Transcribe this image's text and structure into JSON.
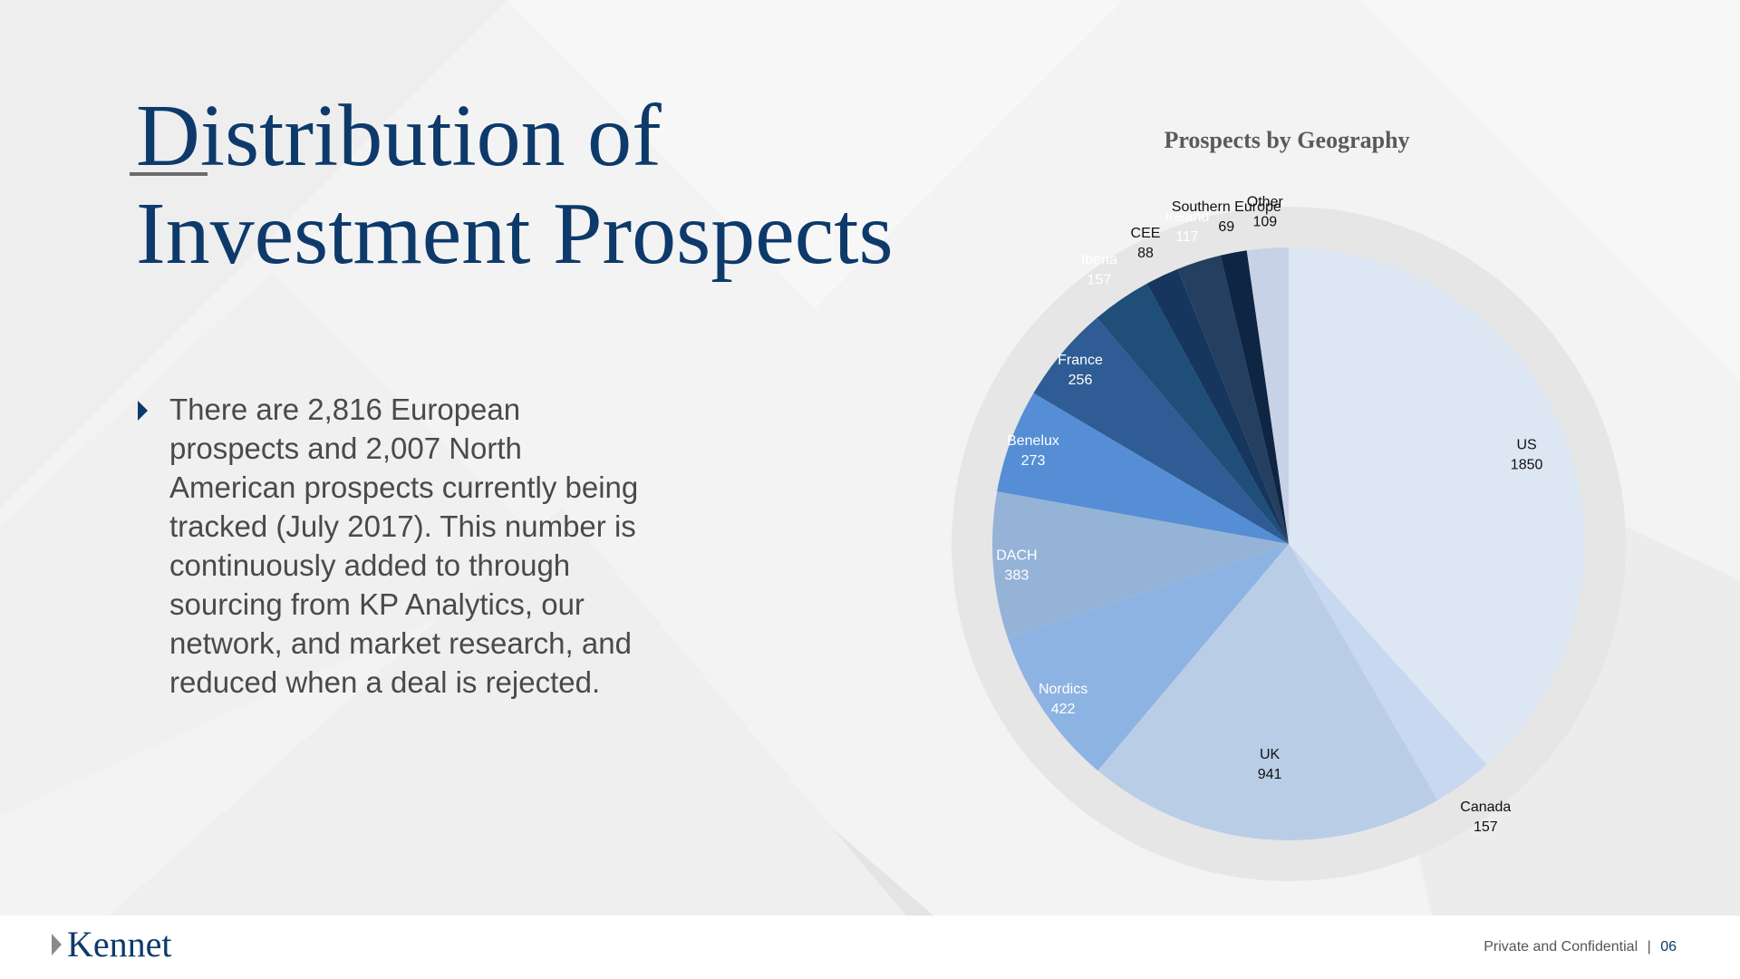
{
  "slide": {
    "title_line1": "Distribution of",
    "title_line2": "Investment Prospects",
    "bullet": "There are 2,816 European prospects and 2,007 North American prospects currently being tracked (July 2017). This number is continuously added to through sourcing from KP Analytics, our network, and market research, and reduced when a deal is rejected."
  },
  "footer": {
    "logo_text": "Kennet",
    "confidential": "Private and Confidential",
    "separator": "|",
    "page_number": "06"
  },
  "colors": {
    "title": "#0d3a6b",
    "ring": "#e6e6e6"
  },
  "chart_data": {
    "type": "pie",
    "title": "Prospects by Geography",
    "start_angle_deg": 0,
    "direction": "clockwise",
    "slices": [
      {
        "label": "US",
        "value": 1850,
        "color": "#dde6f3",
        "label_color": "#111111"
      },
      {
        "label": "Canada",
        "value": 157,
        "color": "#c7d8f0",
        "label_color": "#111111"
      },
      {
        "label": "UK",
        "value": 941,
        "color": "#b9cde6",
        "label_color": "#111111"
      },
      {
        "label": "Nordics",
        "value": 422,
        "color": "#8db3e2",
        "label_color": "#ffffff"
      },
      {
        "label": "DACH",
        "value": 383,
        "color": "#95b3d7",
        "label_color": "#ffffff"
      },
      {
        "label": "Benelux",
        "value": 273,
        "color": "#558ed5",
        "label_color": "#ffffff"
      },
      {
        "label": "France",
        "value": 256,
        "color": "#2f5c94",
        "label_color": "#ffffff"
      },
      {
        "label": "Iberia",
        "value": 157,
        "color": "#1f4e79",
        "label_color": "#ffffff"
      },
      {
        "label": "CEE",
        "value": 88,
        "color": "#17365d",
        "label_color": "#111111"
      },
      {
        "label": "Ireland",
        "value": 117,
        "color": "#243f60",
        "label_color": "#ffffff"
      },
      {
        "label": "Southern Europe",
        "value": 69,
        "color": "#0f2544",
        "label_color": "#111111"
      },
      {
        "label": "Other",
        "value": 109,
        "color": "#c8d2e6",
        "label_color": "#111111"
      }
    ]
  }
}
